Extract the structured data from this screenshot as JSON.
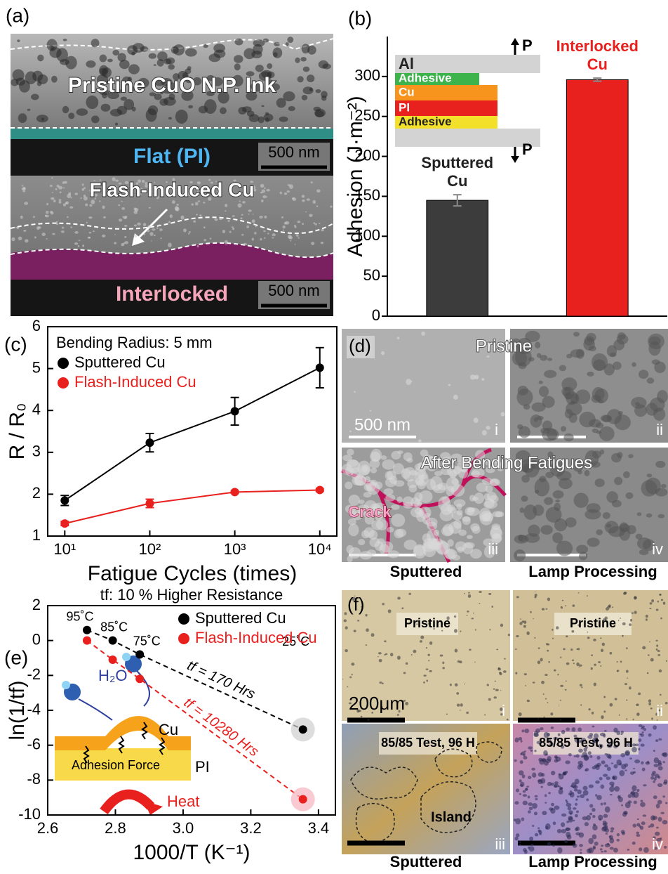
{
  "panels": {
    "a": {
      "label": "(a)",
      "top": "Pristine CuO N.P. Ink",
      "flat": "Flat (PI)",
      "scale_top": "500 nm",
      "middle": "Flash-Induced Cu",
      "bottom": "Interlocked",
      "scale_bottom": "500 nm"
    },
    "d": {
      "label": "(d)",
      "row_top": "Pristine",
      "row_bottom": "After Bending Fatigues",
      "scale": "500 nm",
      "crack": "Crack",
      "numerals": [
        "i",
        "ii",
        "iii",
        "iv"
      ],
      "columns": [
        "Sputtered",
        "Lamp Processing"
      ]
    },
    "f": {
      "label": "(f)",
      "tags": [
        "Pristine",
        "Pristine",
        "85/85 Test, 96 H",
        "85/85 Test, 96 H"
      ],
      "scale": "200μm",
      "island": "Island",
      "numerals": [
        "i",
        "ii",
        "iii",
        "iv"
      ],
      "columns": [
        "Sputtered",
        "Lamp Processing"
      ]
    }
  },
  "chart_data": [
    {
      "type": "bar",
      "panel": "(b)",
      "y_label": "Adhesion (J·m⁻²)",
      "categories": [
        "Sputtered Cu",
        "Interlocked Cu"
      ],
      "values": [
        145,
        296
      ],
      "errors": [
        7,
        2
      ],
      "colors": [
        "#3c3c3c",
        "#e8201e"
      ],
      "ylim": [
        0,
        350
      ],
      "yticks": [
        0,
        50,
        100,
        150,
        200,
        250,
        300
      ],
      "inset": {
        "layers": [
          "Al",
          "Adhesive",
          "Cu",
          "PI",
          "Adhesive"
        ],
        "force": [
          "P",
          "P"
        ]
      }
    },
    {
      "type": "line",
      "panel": "(c)",
      "x_label": "Fatigue Cycles (times)",
      "y_label": "R / R₀",
      "annotation": "Bending Radius: 5 mm",
      "xscale": "log",
      "x": [
        10,
        100,
        1000,
        10000
      ],
      "xlim": [
        6.3,
        15849
      ],
      "xticks": [
        {
          "value": 10,
          "label": "10¹"
        },
        {
          "value": 100,
          "label": "10²"
        },
        {
          "value": 1000,
          "label": "10³"
        },
        {
          "value": 10000,
          "label": "10⁴"
        }
      ],
      "ylim": [
        1,
        6
      ],
      "yticks": [
        1,
        2,
        3,
        4,
        5,
        6
      ],
      "series": [
        {
          "name": "Sputtered Cu",
          "color": "#000000",
          "values": [
            1.85,
            3.23,
            3.98,
            5.02
          ],
          "errors": [
            0.12,
            0.22,
            0.33,
            0.48
          ]
        },
        {
          "name": "Flash-Induced Cu",
          "color": "#e8201e",
          "values": [
            1.3,
            1.78,
            2.05,
            2.1
          ],
          "errors": [
            0.05,
            0.1,
            0.03,
            0.03
          ]
        }
      ]
    },
    {
      "type": "line",
      "panel": "(e)",
      "title": "tf: 10 % Higher Resistance",
      "x_label": "1000/T (K⁻¹)",
      "y_label": "ln(1/tf)",
      "x": [
        2.716,
        2.792,
        2.872,
        3.354
      ],
      "xlim": [
        2.6,
        3.45
      ],
      "xticks": [
        2.6,
        2.8,
        {
          "value": 3,
          "label": "3.0"
        },
        3.2,
        3.4
      ],
      "ylim": [
        -10,
        2
      ],
      "yticks": [
        -10,
        -8,
        -6,
        -4,
        -2,
        0,
        2
      ],
      "dashed": true,
      "series": [
        {
          "name": "Sputtered Cu",
          "color": "#000000",
          "values": [
            0.6,
            0,
            -0.8,
            -5.1
          ],
          "point_labels": [
            "95˚C",
            "85˚C",
            "75˚C",
            "25˚C"
          ],
          "fit_label": "tf = 170 Hrs"
        },
        {
          "name": "Flash-Induced Cu",
          "color": "#e8201e",
          "values": [
            0,
            -1.1,
            -2.2,
            -9.1
          ],
          "fit_label": "tf = 10280 Hrs"
        }
      ],
      "inset": {
        "water": "H₂O",
        "top": "Cu",
        "force": "Adhesion Force",
        "bottom": "PI",
        "heat": "Heat"
      }
    }
  ]
}
